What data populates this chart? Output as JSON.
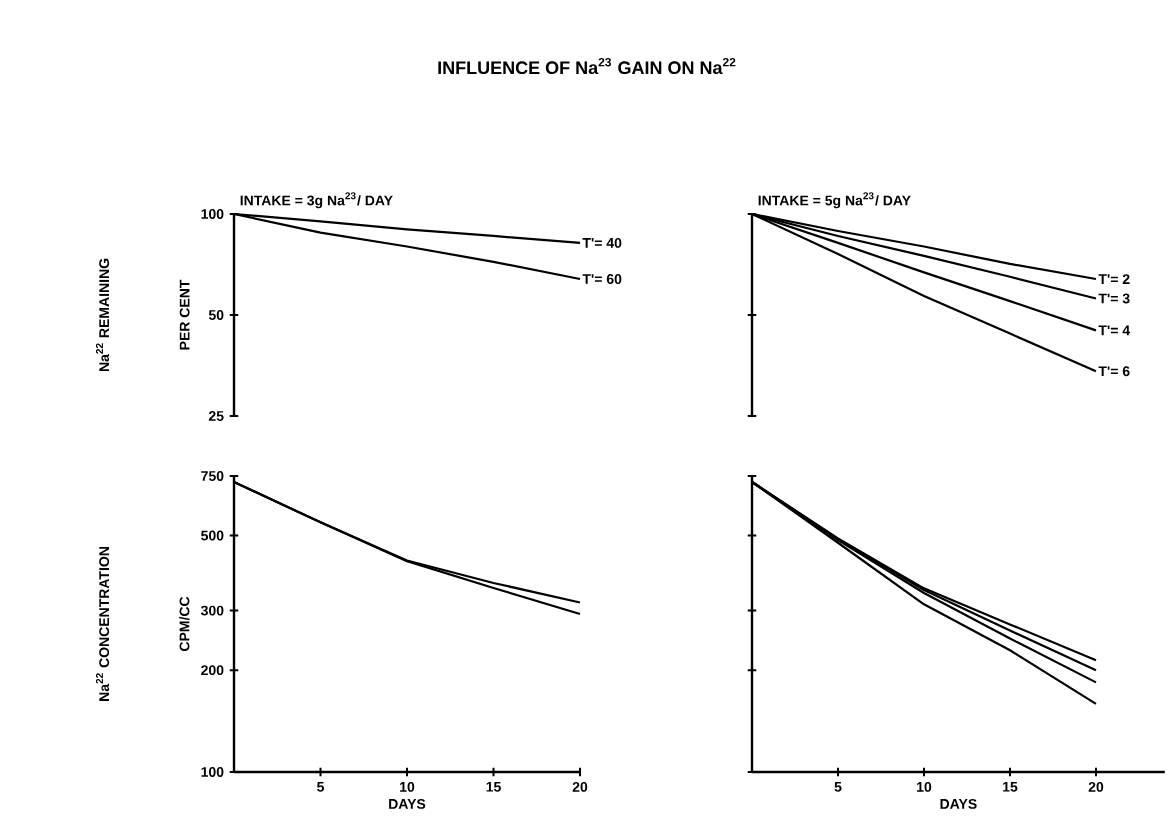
{
  "chart_data": [
    {
      "type": "line",
      "title": "INFLUENCE OF Na$^{23}$ GAIN ON Na$^{22}$",
      "subtitle": "INTAKE = 3g Na$^{23}$/ DAY",
      "ylabel": "PER CENT",
      "annotations": [
        "Na$^{22}$ REMAINING"
      ],
      "log": "y",
      "xlim": [
        0,
        20
      ],
      "ylim": [
        25,
        100
      ],
      "yticks": [
        25,
        50,
        100
      ],
      "tick_labels": "y",
      "x": [
        0,
        5,
        10,
        15,
        20
      ],
      "series": [
        {
          "name": "T'= 40",
          "color": "#000000",
          "values": [
            100,
            95,
            90,
            86,
            82
          ]
        },
        {
          "name": "T'= 60",
          "color": "#000000",
          "values": [
            100,
            88,
            80,
            72,
            64
          ]
        }
      ]
    },
    {
      "type": "line",
      "subtitle": "INTAKE = 5g Na$^{23}$/ DAY",
      "log": "y",
      "xlim": [
        0,
        20
      ],
      "ylim": [
        25,
        100
      ],
      "yticks": [
        25,
        50,
        100
      ],
      "tick_labels": false,
      "x": [
        0,
        5,
        10,
        15,
        20
      ],
      "series": [
        {
          "name": "T'= 2",
          "color": "#000000",
          "values": [
            100,
            89,
            80,
            71,
            64
          ]
        },
        {
          "name": "T'= 3",
          "color": "#000000",
          "values": [
            100,
            86,
            75,
            65,
            56
          ]
        },
        {
          "name": "T'= 4",
          "color": "#000000",
          "values": [
            100,
            82,
            67,
            55,
            45
          ]
        },
        {
          "name": "T'= 6",
          "color": "#000000",
          "values": [
            100,
            76,
            57,
            44,
            34
          ]
        }
      ]
    },
    {
      "type": "line",
      "xlabel": "DAYS",
      "ylabel": "CPM/CC",
      "annotations": [
        "Na$^{22}$ CONCENTRATION"
      ],
      "log": "y",
      "xlim": [
        0,
        20
      ],
      "ylim": [
        100,
        750
      ],
      "xticks": [
        5,
        10,
        15,
        20
      ],
      "yticks": [
        100,
        200,
        300,
        500,
        750
      ],
      "x": [
        0,
        5,
        10,
        15,
        20
      ],
      "series": [
        {
          "color": "#000000",
          "values": [
            720,
            547,
            422,
            362,
            317
          ]
        },
        {
          "color": "#000000",
          "values": [
            720,
            547,
            420,
            350,
            293
          ]
        }
      ]
    },
    {
      "type": "line",
      "xlabel": "DAYS",
      "log": "y",
      "xlim": [
        0,
        24
      ],
      "ylim": [
        100,
        750
      ],
      "xticks": [
        5,
        10,
        15,
        20
      ],
      "yticks": [
        100,
        200,
        300,
        500,
        750
      ],
      "tick_labels": "x",
      "x": [
        0,
        5,
        10,
        15,
        20
      ],
      "series": [
        {
          "color": "#000000",
          "values": [
            720,
            490,
            349,
            273,
            214
          ]
        },
        {
          "color": "#000000",
          "values": [
            720,
            488,
            345,
            262,
            200
          ]
        },
        {
          "color": "#000000",
          "values": [
            720,
            485,
            338,
            248,
            184
          ]
        },
        {
          "color": "#000000",
          "values": [
            720,
            476,
            313,
            229,
            159
          ]
        }
      ]
    }
  ]
}
